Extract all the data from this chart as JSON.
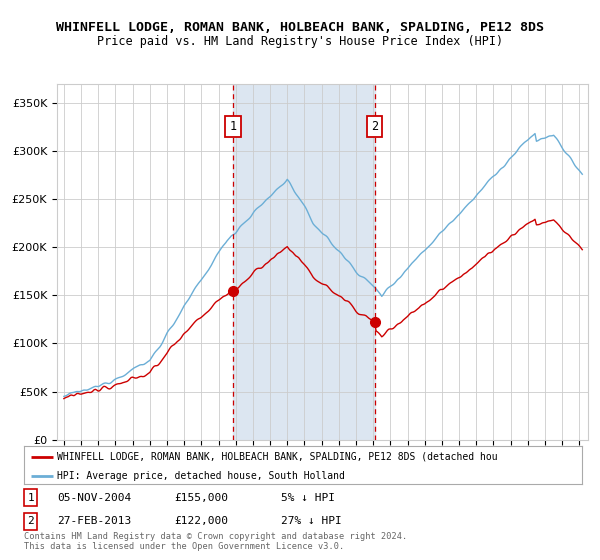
{
  "title": "WHINFELL LODGE, ROMAN BANK, HOLBEACH BANK, SPALDING, PE12 8DS",
  "subtitle": "Price paid vs. HM Land Registry's House Price Index (HPI)",
  "legend_line1": "WHINFELL LODGE, ROMAN BANK, HOLBEACH BANK, SPALDING, PE12 8DS (detached hou",
  "legend_line2": "HPI: Average price, detached house, South Holland",
  "footer1": "Contains HM Land Registry data © Crown copyright and database right 2024.",
  "footer2": "This data is licensed under the Open Government Licence v3.0.",
  "annotation1": {
    "label": "1",
    "date": "05-NOV-2004",
    "price": "£155,000",
    "pct": "5% ↓ HPI"
  },
  "annotation2": {
    "label": "2",
    "date": "27-FEB-2013",
    "price": "£122,000",
    "pct": "27% ↓ HPI"
  },
  "hpi_color": "#6baed6",
  "price_color": "#cc0000",
  "vline_color": "#cc0000",
  "shade_color": "#dce6f1",
  "background_color": "#ffffff",
  "grid_color": "#cccccc",
  "ylim": [
    0,
    370000
  ],
  "yticks": [
    0,
    50000,
    100000,
    150000,
    200000,
    250000,
    300000,
    350000
  ],
  "ytick_labels": [
    "£0",
    "£50K",
    "£100K",
    "£150K",
    "£200K",
    "£250K",
    "£300K",
    "£350K"
  ],
  "sale1_year": 2004,
  "sale1_month": 11,
  "sale1_price": 155000,
  "sale2_year": 2013,
  "sale2_month": 2,
  "sale2_price": 122000,
  "title_fontsize": 9.5,
  "subtitle_fontsize": 8.5
}
